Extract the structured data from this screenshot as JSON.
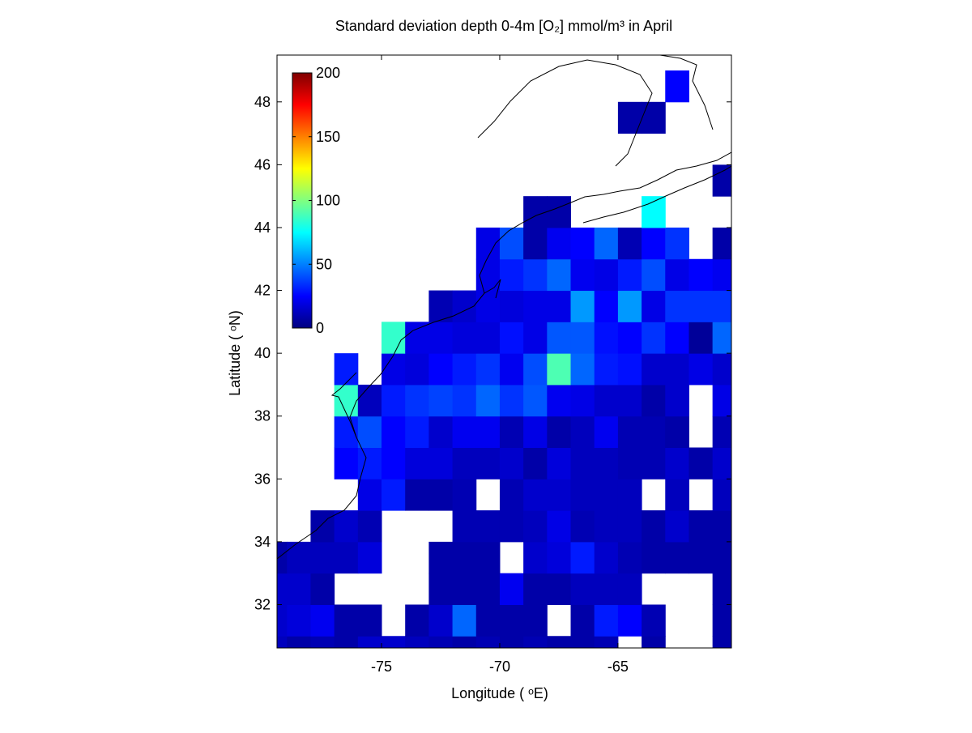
{
  "chart_data": {
    "type": "heatmap",
    "title": "Standard deviation depth 0-4m [O₂] mmol/m³ in April",
    "x_label": "Longitude ( ᵒE)",
    "y_label": "Latitude ( ᵒN)",
    "x": [
      -79.5,
      -78.5,
      -77.5,
      -76.5,
      -75.5,
      -74.5,
      -73.5,
      -72.5,
      -71.5,
      -70.5,
      -69.5,
      -68.5,
      -67.5,
      -66.5,
      -65.5,
      -64.5,
      -63.5,
      -62.5,
      -61.5,
      -60.5
    ],
    "y": [
      30.5,
      31.5,
      32.5,
      33.5,
      34.5,
      35.5,
      36.5,
      37.5,
      38.5,
      39.5,
      40.5,
      41.5,
      42.5,
      43.5,
      44.5,
      45.5,
      46.5,
      47.5,
      48.5
    ],
    "values": [
      [
        12,
        8,
        10,
        8,
        15,
        15,
        12,
        10,
        8,
        10,
        8,
        10,
        8,
        8,
        10,
        null,
        8,
        null,
        null,
        8
      ],
      [
        15,
        18,
        22,
        8,
        8,
        null,
        8,
        15,
        45,
        8,
        8,
        8,
        null,
        8,
        30,
        25,
        10,
        null,
        null,
        8
      ],
      [
        15,
        15,
        8,
        null,
        null,
        null,
        null,
        8,
        8,
        8,
        22,
        8,
        8,
        12,
        12,
        12,
        null,
        null,
        null,
        8
      ],
      [
        8,
        12,
        12,
        12,
        18,
        null,
        null,
        8,
        8,
        8,
        null,
        15,
        18,
        30,
        15,
        10,
        8,
        8,
        8,
        8
      ],
      [
        null,
        null,
        8,
        15,
        10,
        null,
        null,
        null,
        10,
        10,
        10,
        12,
        20,
        10,
        12,
        12,
        8,
        15,
        8,
        8
      ],
      [
        null,
        null,
        null,
        null,
        20,
        30,
        8,
        8,
        10,
        null,
        10,
        15,
        15,
        12,
        12,
        12,
        null,
        12,
        null,
        12
      ],
      [
        null,
        null,
        null,
        25,
        30,
        25,
        18,
        18,
        12,
        12,
        15,
        8,
        18,
        12,
        12,
        10,
        10,
        15,
        8,
        15
      ],
      [
        null,
        null,
        null,
        30,
        40,
        25,
        30,
        15,
        22,
        22,
        10,
        20,
        8,
        12,
        22,
        10,
        10,
        8,
        null,
        10
      ],
      [
        null,
        null,
        null,
        85,
        12,
        30,
        35,
        38,
        35,
        45,
        35,
        42,
        22,
        20,
        15,
        15,
        8,
        15,
        null,
        20
      ],
      [
        null,
        null,
        null,
        30,
        null,
        20,
        18,
        25,
        30,
        35,
        22,
        40,
        90,
        45,
        30,
        28,
        15,
        15,
        20,
        15
      ],
      [
        null,
        null,
        null,
        null,
        null,
        85,
        20,
        20,
        18,
        18,
        28,
        20,
        42,
        42,
        28,
        25,
        35,
        25,
        5,
        45
      ],
      [
        null,
        null,
        null,
        null,
        null,
        null,
        null,
        10,
        15,
        20,
        18,
        20,
        20,
        55,
        25,
        55,
        20,
        35,
        35,
        35
      ],
      [
        null,
        null,
        null,
        null,
        null,
        null,
        null,
        null,
        null,
        20,
        30,
        35,
        45,
        22,
        20,
        30,
        40,
        20,
        25,
        22
      ],
      [
        null,
        null,
        null,
        null,
        null,
        null,
        null,
        null,
        null,
        20,
        40,
        8,
        22,
        25,
        45,
        10,
        25,
        35,
        null,
        8
      ],
      [
        null,
        null,
        null,
        null,
        null,
        null,
        null,
        null,
        null,
        null,
        null,
        8,
        8,
        null,
        null,
        null,
        75,
        null,
        null,
        null
      ],
      [
        null,
        null,
        null,
        null,
        null,
        null,
        null,
        null,
        null,
        null,
        null,
        null,
        null,
        null,
        null,
        null,
        null,
        null,
        null,
        8
      ],
      [
        null,
        null,
        null,
        null,
        null,
        null,
        null,
        null,
        null,
        null,
        null,
        null,
        null,
        null,
        null,
        null,
        null,
        null,
        null,
        null
      ],
      [
        null,
        null,
        null,
        null,
        null,
        null,
        null,
        null,
        null,
        null,
        null,
        null,
        null,
        null,
        null,
        8,
        8,
        null,
        null,
        null
      ],
      [
        null,
        null,
        null,
        null,
        null,
        null,
        null,
        null,
        null,
        null,
        null,
        null,
        null,
        null,
        null,
        null,
        null,
        25,
        null,
        null
      ]
    ],
    "colormap": "jet",
    "xlim": [
      -79.42,
      -60.2
    ],
    "ylim": [
      30.62,
      49.49
    ],
    "xticks": [
      -75,
      -70,
      -65
    ],
    "yticks": [
      32,
      34,
      36,
      38,
      40,
      42,
      44,
      46,
      48
    ],
    "colorbar": {
      "clim": [
        0,
        200
      ],
      "ticks": [
        0,
        50,
        100,
        150,
        200
      ]
    }
  }
}
